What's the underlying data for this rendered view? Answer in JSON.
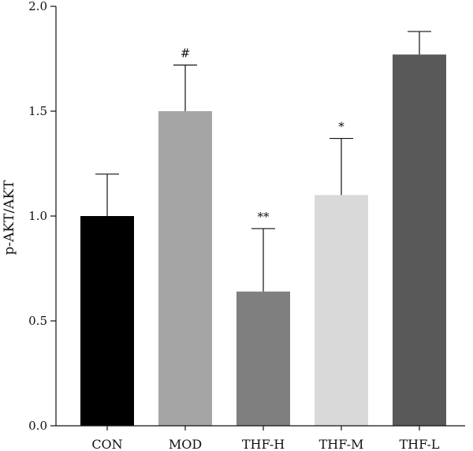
{
  "chart_data": {
    "type": "bar",
    "title": "",
    "xlabel": "",
    "ylabel": "p-AKT/AKT",
    "ylim": [
      0,
      2.0
    ],
    "yticks": [
      "0.0",
      "0.5",
      "1.0",
      "1.5",
      "2.0"
    ],
    "categories": [
      "CON",
      "MOD",
      "THF-H",
      "THF-M",
      "THF-L"
    ],
    "values": [
      1.0,
      1.5,
      0.64,
      1.1,
      1.77
    ],
    "error_upper": [
      0.2,
      0.22,
      0.3,
      0.27,
      0.11
    ],
    "significance": [
      "",
      "#",
      "**",
      "*",
      ""
    ],
    "bar_colors": [
      "#000000",
      "#a5a5a5",
      "#7f7f7f",
      "#d9d9d9",
      "#595959"
    ],
    "grid": false,
    "legend": "none"
  }
}
